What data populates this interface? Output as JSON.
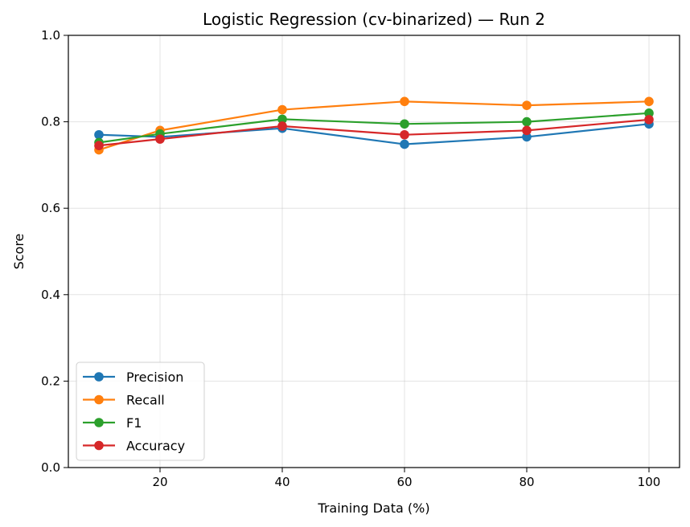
{
  "chart_data": {
    "type": "line",
    "title": "Logistic Regression (cv-binarized) — Run 2",
    "xlabel": "Training Data (%)",
    "ylabel": "Score",
    "x": [
      10,
      20,
      40,
      60,
      80,
      100
    ],
    "xlim": [
      5,
      105
    ],
    "ylim": [
      0.0,
      1.0
    ],
    "xticks": [
      20,
      40,
      60,
      80,
      100
    ],
    "xtick_labels": [
      "20",
      "40",
      "60",
      "80",
      "100"
    ],
    "yticks": [
      0.0,
      0.2,
      0.4,
      0.6,
      0.8,
      1.0
    ],
    "ytick_labels": [
      "0.0",
      "0.2",
      "0.4",
      "0.6",
      "0.8",
      "1.0"
    ],
    "grid": true,
    "legend_position": "lower-left",
    "series": [
      {
        "name": "Precision",
        "color": "#1f77b4",
        "values": [
          0.77,
          0.765,
          0.785,
          0.748,
          0.765,
          0.795
        ]
      },
      {
        "name": "Recall",
        "color": "#ff7f0e",
        "values": [
          0.735,
          0.78,
          0.828,
          0.847,
          0.838,
          0.847
        ]
      },
      {
        "name": "F1",
        "color": "#2ca02c",
        "values": [
          0.752,
          0.772,
          0.806,
          0.795,
          0.8,
          0.82
        ]
      },
      {
        "name": "Accuracy",
        "color": "#d62728",
        "values": [
          0.745,
          0.76,
          0.79,
          0.77,
          0.78,
          0.805
        ]
      }
    ]
  }
}
